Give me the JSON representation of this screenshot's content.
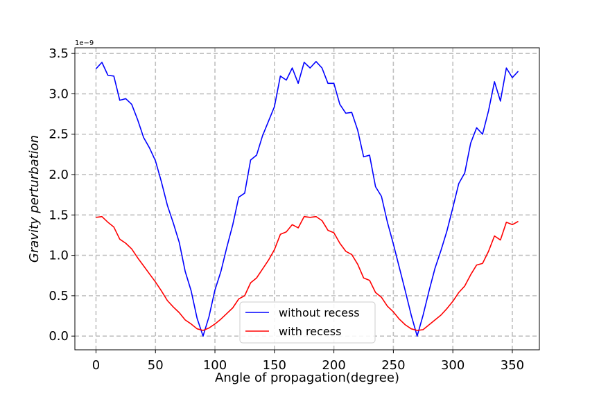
{
  "chart_data": {
    "type": "line",
    "xlabel": "Angle of propagation(degree)",
    "ylabel": "Gravity perturbation",
    "y_offset_label": "1e−9",
    "xlim": [
      -17.75,
      372.75
    ],
    "ylim": [
      -0.17,
      3.57
    ],
    "xticks": [
      0,
      50,
      100,
      150,
      200,
      250,
      300,
      350
    ],
    "yticks": [
      0.0,
      0.5,
      1.0,
      1.5,
      2.0,
      2.5,
      3.0,
      3.5
    ],
    "ytick_labels": [
      "0.0",
      "0.5",
      "1.0",
      "1.5",
      "2.0",
      "2.5",
      "3.0",
      "3.5"
    ],
    "grid": true,
    "legend_position": "lower-center",
    "x": [
      0,
      5,
      10,
      15,
      20,
      25,
      30,
      35,
      40,
      45,
      50,
      55,
      60,
      65,
      70,
      75,
      80,
      85,
      90,
      95,
      100,
      105,
      110,
      115,
      120,
      125,
      130,
      135,
      140,
      145,
      150,
      155,
      160,
      165,
      170,
      175,
      180,
      185,
      190,
      195,
      200,
      205,
      210,
      215,
      220,
      225,
      230,
      235,
      240,
      245,
      250,
      255,
      260,
      265,
      270,
      275,
      280,
      285,
      290,
      295,
      300,
      305,
      310,
      315,
      320,
      325,
      330,
      335,
      340,
      345,
      350,
      355
    ],
    "series": [
      {
        "name": "without recess",
        "color": "#0000ff",
        "values": [
          3.31,
          3.39,
          3.23,
          3.22,
          2.92,
          2.94,
          2.87,
          2.68,
          2.46,
          2.33,
          2.17,
          1.91,
          1.62,
          1.4,
          1.16,
          0.8,
          0.56,
          0.22,
          0.0,
          0.24,
          0.57,
          0.8,
          1.1,
          1.38,
          1.72,
          1.77,
          2.18,
          2.24,
          2.48,
          2.66,
          2.84,
          3.22,
          3.17,
          3.32,
          3.13,
          3.39,
          3.32,
          3.4,
          3.32,
          3.13,
          3.13,
          2.87,
          2.76,
          2.77,
          2.55,
          2.22,
          2.24,
          1.85,
          1.73,
          1.41,
          1.14,
          0.85,
          0.56,
          0.26,
          0.0,
          0.26,
          0.56,
          0.84,
          1.06,
          1.3,
          1.59,
          1.89,
          2.02,
          2.39,
          2.58,
          2.5,
          2.79,
          3.15,
          2.91,
          3.32,
          3.2,
          3.28
        ]
      },
      {
        "name": "with recess",
        "color": "#ff0000",
        "values": [
          1.47,
          1.48,
          1.41,
          1.35,
          1.2,
          1.15,
          1.08,
          0.97,
          0.87,
          0.77,
          0.67,
          0.56,
          0.44,
          0.36,
          0.29,
          0.2,
          0.15,
          0.09,
          0.07,
          0.1,
          0.15,
          0.21,
          0.28,
          0.35,
          0.46,
          0.5,
          0.66,
          0.72,
          0.83,
          0.94,
          1.07,
          1.26,
          1.29,
          1.38,
          1.34,
          1.48,
          1.47,
          1.48,
          1.43,
          1.31,
          1.28,
          1.15,
          1.05,
          1.01,
          0.89,
          0.72,
          0.69,
          0.54,
          0.48,
          0.37,
          0.3,
          0.21,
          0.14,
          0.09,
          0.07,
          0.08,
          0.14,
          0.2,
          0.26,
          0.34,
          0.43,
          0.54,
          0.62,
          0.76,
          0.88,
          0.9,
          1.05,
          1.24,
          1.19,
          1.41,
          1.38,
          1.42
        ]
      }
    ]
  }
}
